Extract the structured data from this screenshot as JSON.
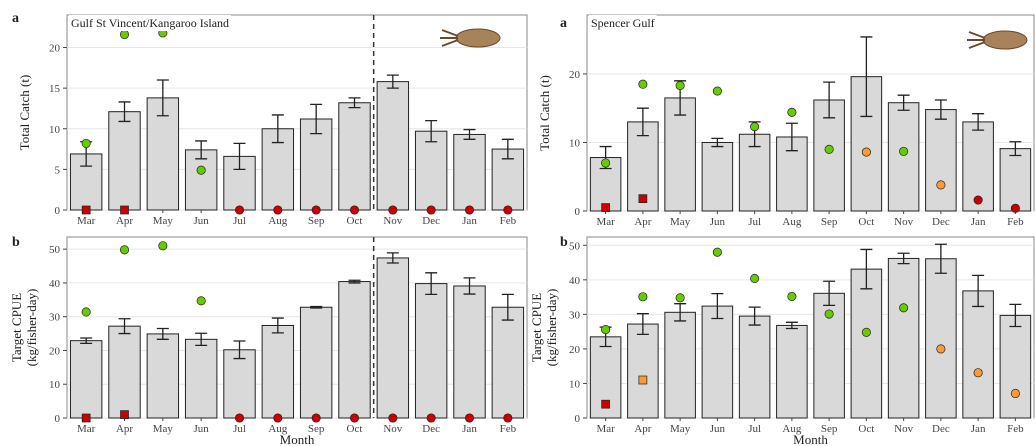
{
  "chart_data": [
    {
      "type": "bar",
      "panel_label": "a",
      "title": "Gulf St Vincent/Kangaroo Island",
      "ylabel": "Total Catch (t)",
      "categories": [
        "Mar",
        "Apr",
        "May",
        "Jun",
        "Jul",
        "Aug",
        "Sep",
        "Oct",
        "Nov",
        "Dec",
        "Jan",
        "Feb"
      ],
      "values": [
        6.9,
        12.1,
        13.8,
        7.4,
        6.6,
        10.0,
        11.2,
        13.2,
        15.8,
        9.7,
        9.3,
        7.5
      ],
      "errors": [
        1.5,
        1.2,
        2.2,
        1.1,
        1.6,
        1.7,
        1.8,
        0.6,
        0.8,
        1.3,
        0.6,
        1.2
      ],
      "color": "#d9d9d9",
      "ylim": [
        0,
        24
      ],
      "yticks": [
        0,
        5,
        10,
        15,
        20
      ],
      "grid": true,
      "divider_before": 8,
      "points": [
        {
          "color": "#66cc00",
          "shape": "circle",
          "values": [
            8.2,
            21.6,
            21.8,
            4.9,
            null,
            null,
            null,
            null,
            null,
            null,
            null,
            null
          ]
        },
        {
          "color": "#cc0000",
          "shape": "square",
          "values": [
            0,
            0,
            null,
            null,
            null,
            null,
            null,
            null,
            null,
            null,
            null,
            null
          ]
        },
        {
          "color": "#cc0000",
          "shape": "circle",
          "values": [
            null,
            null,
            null,
            null,
            0,
            0,
            0,
            0,
            0,
            0,
            0,
            0
          ]
        }
      ]
    },
    {
      "type": "bar",
      "panel_label": "b",
      "ylabel": "Target CPUE\n(kg/fisher-day)",
      "xlabel": "Month",
      "categories": [
        "Mar",
        "Apr",
        "May",
        "Jun",
        "Jul",
        "Aug",
        "Sep",
        "Oct",
        "Nov",
        "Dec",
        "Jan",
        "Feb"
      ],
      "values": [
        22.9,
        27.2,
        24.9,
        23.3,
        20.2,
        27.4,
        32.8,
        40.4,
        47.4,
        39.8,
        39.1,
        32.8
      ],
      "errors": [
        0.8,
        2.2,
        1.6,
        1.8,
        2.6,
        2.2,
        0.2,
        0.4,
        1.5,
        3.2,
        2.4,
        3.8
      ],
      "color": "#d9d9d9",
      "ylim": [
        0,
        53.6
      ],
      "yticks": [
        0,
        10,
        20,
        30,
        40,
        50
      ],
      "grid": true,
      "divider_before": 8,
      "points": [
        {
          "color": "#66cc00",
          "shape": "circle",
          "values": [
            31.4,
            49.8,
            51.0,
            34.7,
            null,
            null,
            null,
            null,
            null,
            null,
            null,
            null
          ]
        },
        {
          "color": "#cc0000",
          "shape": "square",
          "values": [
            0,
            1,
            null,
            null,
            null,
            null,
            null,
            null,
            null,
            null,
            null,
            null
          ]
        },
        {
          "color": "#cc0000",
          "shape": "circle",
          "values": [
            null,
            null,
            null,
            null,
            0,
            0,
            0,
            0,
            0,
            0,
            0,
            0
          ]
        }
      ]
    },
    {
      "type": "bar",
      "panel_label": "a",
      "title": "Spencer Gulf",
      "ylabel": "Total Catch (t)",
      "categories": [
        "Mar",
        "Apr",
        "May",
        "Jun",
        "Jul",
        "Aug",
        "Sep",
        "Oct",
        "Nov",
        "Dec",
        "Jan",
        "Feb"
      ],
      "values": [
        7.8,
        13.0,
        16.5,
        10.0,
        11.2,
        10.8,
        16.2,
        19.6,
        15.8,
        14.8,
        13.0,
        9.1
      ],
      "errors": [
        1.6,
        2.0,
        2.5,
        0.6,
        1.8,
        2.0,
        2.6,
        5.8,
        1.1,
        1.4,
        1.2,
        1.0
      ],
      "color": "#d9d9d9",
      "ylim": [
        0,
        28.6
      ],
      "yticks": [
        0,
        10,
        20
      ],
      "grid": true,
      "points": [
        {
          "color": "#66cc00",
          "shape": "circle",
          "values": [
            7.0,
            18.5,
            18.3,
            17.5,
            12.3,
            14.4,
            9.0,
            null,
            8.7,
            null,
            null,
            null
          ]
        },
        {
          "color": "#ff9933",
          "shape": "circle",
          "values": [
            null,
            null,
            null,
            null,
            null,
            null,
            null,
            8.6,
            null,
            3.8,
            null,
            null
          ]
        },
        {
          "color": "#cc0000",
          "shape": "square",
          "values": [
            0.5,
            1.8,
            null,
            null,
            null,
            null,
            null,
            null,
            null,
            null,
            null,
            null
          ]
        },
        {
          "color": "#cc0000",
          "shape": "circle",
          "values": [
            null,
            null,
            null,
            null,
            null,
            null,
            null,
            null,
            null,
            null,
            1.6,
            0.4
          ]
        }
      ]
    },
    {
      "type": "bar",
      "panel_label": "b",
      "ylabel": "Target CPUE\n(kg/fisher-day)",
      "xlabel": "Month",
      "categories": [
        "Mar",
        "Apr",
        "May",
        "Jun",
        "Jul",
        "Aug",
        "Sep",
        "Oct",
        "Nov",
        "Dec",
        "Jan",
        "Feb"
      ],
      "values": [
        23.5,
        27.2,
        30.6,
        32.4,
        29.5,
        26.8,
        36.1,
        43.1,
        46.2,
        46.1,
        36.8,
        29.7
      ],
      "errors": [
        2.8,
        3.0,
        2.5,
        3.6,
        2.6,
        0.9,
        3.5,
        5.7,
        1.5,
        4.2,
        4.5,
        3.2
      ],
      "color": "#d9d9d9",
      "ylim": [
        0,
        52.4
      ],
      "yticks": [
        0,
        10,
        20,
        30,
        40,
        50
      ],
      "grid": true,
      "points": [
        {
          "color": "#66cc00",
          "shape": "circle",
          "values": [
            25.6,
            35.1,
            34.8,
            48.0,
            40.4,
            35.2,
            30.1,
            24.8,
            31.9,
            null,
            null,
            null
          ]
        },
        {
          "color": "#ff9933",
          "shape": "square",
          "values": [
            null,
            11,
            null,
            null,
            null,
            null,
            null,
            null,
            null,
            null,
            null,
            null
          ]
        },
        {
          "color": "#ff9933",
          "shape": "circle",
          "values": [
            null,
            null,
            null,
            null,
            null,
            null,
            null,
            null,
            null,
            20,
            13.1,
            7.1
          ]
        },
        {
          "color": "#cc0000",
          "shape": "square",
          "values": [
            4,
            null,
            null,
            null,
            null,
            null,
            null,
            null,
            null,
            null,
            null,
            null
          ]
        }
      ]
    }
  ]
}
